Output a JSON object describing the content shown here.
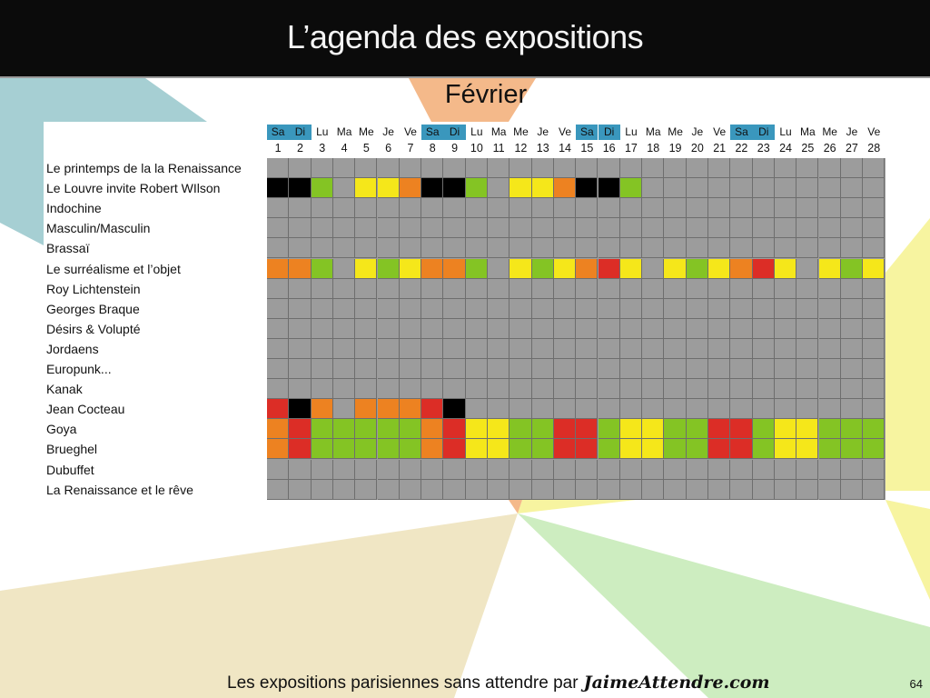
{
  "header": {
    "title": "L’agenda des expositions"
  },
  "month": "Février",
  "days": [
    {
      "name": "Sa",
      "num": "1",
      "weekend": true
    },
    {
      "name": "Di",
      "num": "2",
      "weekend": true
    },
    {
      "name": "Lu",
      "num": "3",
      "weekend": false
    },
    {
      "name": "Ma",
      "num": "4",
      "weekend": false
    },
    {
      "name": "Me",
      "num": "5",
      "weekend": false
    },
    {
      "name": "Je",
      "num": "6",
      "weekend": false
    },
    {
      "name": "Ve",
      "num": "7",
      "weekend": false
    },
    {
      "name": "Sa",
      "num": "8",
      "weekend": true
    },
    {
      "name": "Di",
      "num": "9",
      "weekend": true
    },
    {
      "name": "Lu",
      "num": "10",
      "weekend": false
    },
    {
      "name": "Ma",
      "num": "11",
      "weekend": false
    },
    {
      "name": "Me",
      "num": "12",
      "weekend": false
    },
    {
      "name": "Je",
      "num": "13",
      "weekend": false
    },
    {
      "name": "Ve",
      "num": "14",
      "weekend": false
    },
    {
      "name": "Sa",
      "num": "15",
      "weekend": true
    },
    {
      "name": "Di",
      "num": "16",
      "weekend": true
    },
    {
      "name": "Lu",
      "num": "17",
      "weekend": false
    },
    {
      "name": "Ma",
      "num": "18",
      "weekend": false
    },
    {
      "name": "Me",
      "num": "19",
      "weekend": false
    },
    {
      "name": "Je",
      "num": "20",
      "weekend": false
    },
    {
      "name": "Ve",
      "num": "21",
      "weekend": false
    },
    {
      "name": "Sa",
      "num": "22",
      "weekend": true
    },
    {
      "name": "Di",
      "num": "23",
      "weekend": true
    },
    {
      "name": "Lu",
      "num": "24",
      "weekend": false
    },
    {
      "name": "Ma",
      "num": "25",
      "weekend": false
    },
    {
      "name": "Me",
      "num": "26",
      "weekend": false
    },
    {
      "name": "Je",
      "num": "27",
      "weekend": false
    },
    {
      "name": "Ve",
      "num": "28",
      "weekend": false
    }
  ],
  "colors": {
    "G": "#9c9c9c",
    "K": "#000000",
    "V": "#84c424",
    "Y": "#f5e71a",
    "O": "#ed8221",
    "R": "#dc2d26",
    "weekend_header": "#3a97bd"
  },
  "exhibitions": [
    {
      "label": "Le printemps de la la Renaissance",
      "cells": "GGGGGGGGGGGGGGGGGGGGGGGGGGGG"
    },
    {
      "label": "Le Louvre invite Robert WIlson",
      "cells": "KKVGYYOKKVGYYOKKVGGGGGGGGGGG"
    },
    {
      "label": "Indochine",
      "cells": "GGGGGGGGGGGGGGGGGGGGGGGGGGGG"
    },
    {
      "label": "Masculin/Masculin",
      "cells": "GGGGGGGGGGGGGGGGGGGGGGGGGGGG"
    },
    {
      "label": "Brassaï",
      "cells": "GGGGGGGGGGGGGGGGGGGGGGGGGGGG"
    },
    {
      "label": "Le surréalisme et l’objet",
      "cells": "OOVGYVYOOVGYVYORYGYVYORYGYVY"
    },
    {
      "label": "Roy Lichtenstein",
      "cells": "GGGGGGGGGGGGGGGGGGGGGGGGGGGG"
    },
    {
      "label": "Georges Braque",
      "cells": "GGGGGGGGGGGGGGGGGGGGGGGGGGGG"
    },
    {
      "label": "Désirs & Volupté",
      "cells": "GGGGGGGGGGGGGGGGGGGGGGGGGGGG"
    },
    {
      "label": "Jordaens",
      "cells": "GGGGGGGGGGGGGGGGGGGGGGGGGGGG"
    },
    {
      "label": "Europunk...",
      "cells": "GGGGGGGGGGGGGGGGGGGGGGGGGGGG"
    },
    {
      "label": "Kanak",
      "cells": "GGGGGGGGGGGGGGGGGGGGGGGGGGGG"
    },
    {
      "label": "Jean Cocteau",
      "cells": "RKOGOOORKGGGGGGGGGGGGGGGGGGG"
    },
    {
      "label": "Goya",
      "cells": "ORVVVVVORYYVVRRVYYVVRRVYYVVV"
    },
    {
      "label": "Brueghel",
      "cells": "ORVVVVVORYYVVRRVYYVVRRVYYVVV"
    },
    {
      "label": "Dubuffet",
      "cells": "GGGGGGGGGGGGGGGGGGGGGGGGGGGG"
    },
    {
      "label": "La Renaissance et le rêve",
      "cells": "GGGGGGGGGGGGGGGGGGGGGGGGGGGG"
    }
  ],
  "footer": {
    "text": "Les expositions parisiennes sans attendre par",
    "brand": "JaimeAttendre.com"
  },
  "page_number": "64"
}
